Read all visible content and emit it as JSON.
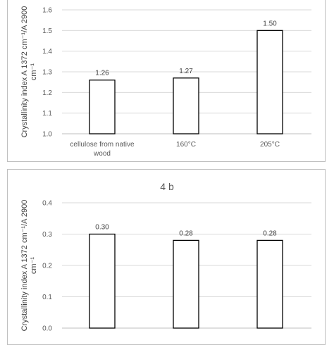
{
  "chart_data": [
    {
      "type": "bar",
      "title": "",
      "categories": [
        [
          "cellulose from native",
          "wood"
        ],
        [
          "160°C"
        ],
        [
          "205°C"
        ]
      ],
      "values": [
        1.26,
        1.27,
        1.5
      ],
      "value_labels": [
        "1.26",
        "1.27",
        "1.50"
      ],
      "ylabel_lines": [
        "Crystallinity index  A 1372 cm⁻¹/A 2900",
        "cm⁻¹"
      ],
      "ylim": [
        1.0,
        1.6
      ],
      "yticks": [
        "1.0",
        "1.1",
        "1.2",
        "1.3",
        "1.4",
        "1.5",
        "1.6"
      ],
      "grid": true,
      "legend": "none",
      "bar_fill": "#ffffff",
      "bar_stroke": "#000000",
      "grid_color": "#d9d9d9"
    },
    {
      "type": "bar",
      "title": "4 b",
      "categories": [
        [
          ""
        ],
        [
          ""
        ],
        [
          ""
        ]
      ],
      "values": [
        0.3,
        0.28,
        0.28
      ],
      "value_labels": [
        "0.30",
        "0.28",
        "0.28"
      ],
      "ylabel_lines": [
        "Crystallinity index  A 1372 cm⁻¹/A 2900",
        "cm⁻¹"
      ],
      "ylim": [
        0.0,
        0.4
      ],
      "yticks": [
        "0.0",
        "0.1",
        "0.2",
        "0.3",
        "0.4"
      ],
      "grid": true,
      "legend": "none",
      "bar_fill": "#ffffff",
      "bar_stroke": "#000000",
      "grid_color": "#d9d9d9"
    }
  ]
}
